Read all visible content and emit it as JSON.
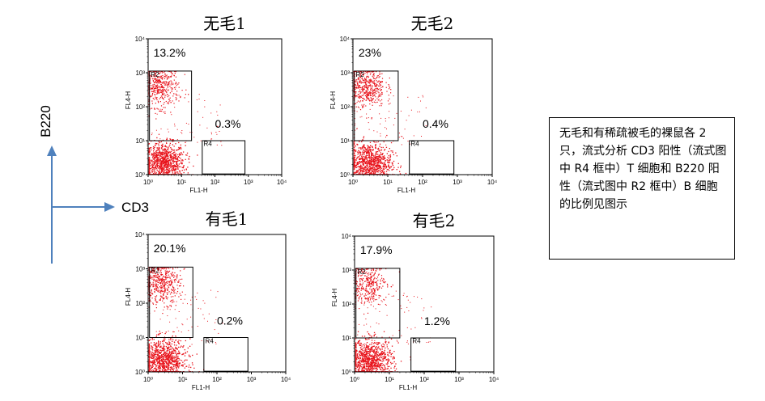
{
  "axes_legend": {
    "y_label": "B220",
    "x_label": "CD3"
  },
  "panels": [
    {
      "title": "无毛1",
      "r2_percent": "13.2%",
      "r4_percent": "0.3%",
      "x_axis_title": "FL1-H",
      "y_axis_title": "FL4-H",
      "r2_label": "R2",
      "r4_label": "R4",
      "tick_labels": [
        "10⁰",
        "10¹",
        "10²",
        "10³",
        "10⁴"
      ]
    },
    {
      "title": "无毛2",
      "r2_percent": "23%",
      "r4_percent": "0.4%",
      "x_axis_title": "FL1-H",
      "y_axis_title": "FL4-H",
      "r2_label": "R2",
      "r4_label": "R4",
      "tick_labels": [
        "10⁰",
        "10¹",
        "10²",
        "10³",
        "10⁴"
      ]
    },
    {
      "title": "有毛1",
      "r2_percent": "20.1%",
      "r4_percent": "0.2%",
      "x_axis_title": "FL1-H",
      "y_axis_title": "FL4-H",
      "r2_label": "R2",
      "r4_label": "R4",
      "tick_labels": [
        "10⁰",
        "10¹",
        "10²",
        "10³",
        "10⁴"
      ]
    },
    {
      "title": "有毛2",
      "r2_percent": "17.9%",
      "r4_percent": "1.2%",
      "x_axis_title": "FL1-H",
      "y_axis_title": "FL4-H",
      "r2_label": "R2",
      "r4_label": "R4",
      "tick_labels": [
        "10⁰",
        "10¹",
        "10²",
        "10³",
        "10⁴"
      ]
    }
  ],
  "note_text": "无毛和有稀疏被毛的裸鼠各 2 只，流式分析 CD3 阳性（流式图中 R4 框中）T 细胞和 B220 阳性（流式图中 R2 框中）B 细胞的比例见图示",
  "colors": {
    "dots": "#e8121a",
    "arrow": "#4f81bd",
    "frame": "#000000"
  }
}
